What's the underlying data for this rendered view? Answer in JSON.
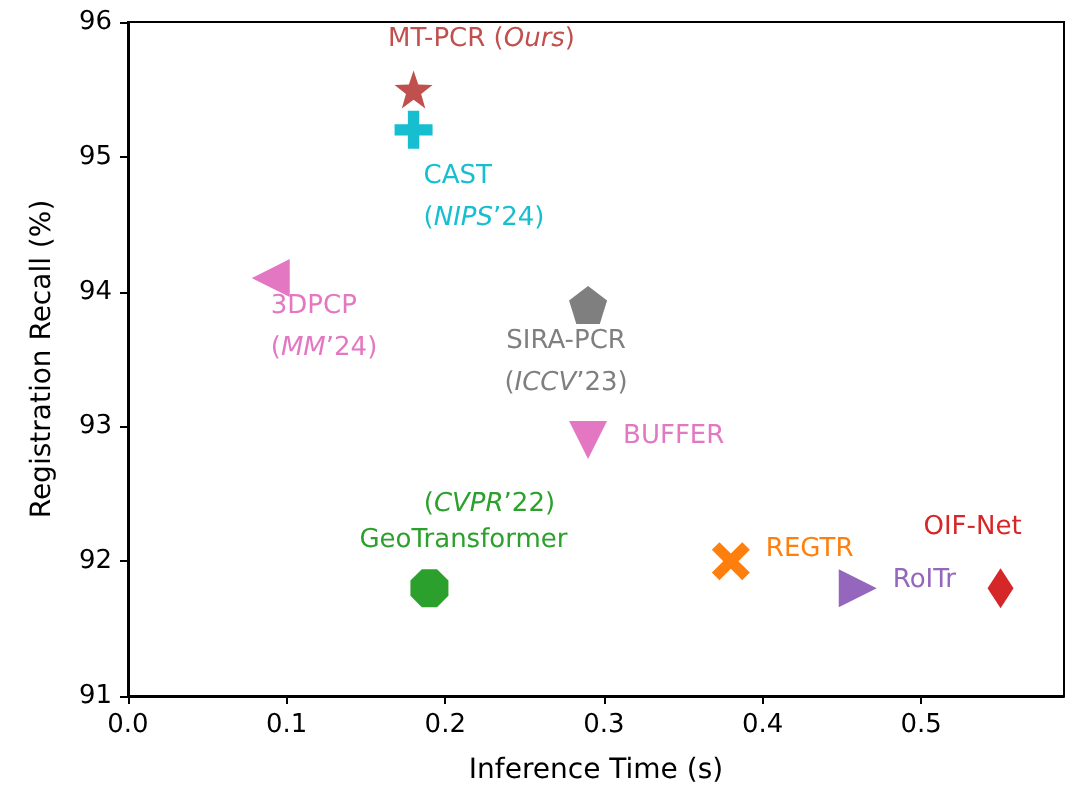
{
  "chart_data": {
    "type": "scatter",
    "xlabel": "Inference Time (s)",
    "ylabel": "Registration Recall (%)",
    "xlim": [
      0,
      0.59
    ],
    "ylim": [
      91,
      96
    ],
    "xticks": [
      {
        "value": 0,
        "label": "0.0"
      },
      0.1,
      0.2,
      0.3,
      0.4,
      0.5
    ],
    "yticks": [
      91,
      92,
      93,
      94,
      95,
      96
    ],
    "grid": false,
    "annotations": [
      {
        "text": "(CVPR’22)",
        "x": 0.19,
        "y": 91.8
      }
    ],
    "series": [
      {
        "name": "MT-PCR (Ours)",
        "color": "#c0504d",
        "marker": "star",
        "x": [
          0.18
        ],
        "values": [
          95.5
        ]
      },
      {
        "name": "CAST (NIPS’24)",
        "color": "#17becf",
        "marker": "plus",
        "x": [
          0.18
        ],
        "values": [
          95.2
        ]
      },
      {
        "name": "3DPCP (MM’24)",
        "color": "#e377c2",
        "marker": "triangle-left",
        "x": [
          0.09
        ],
        "values": [
          94.1
        ]
      },
      {
        "name": "SIRA-PCR (ICCV’23)",
        "color": "#7f7f7f",
        "x": [
          0.29
        ],
        "values": [
          93.9
        ]
      },
      {
        "name": "BUFFER",
        "color": "#e377c2",
        "marker": "triangle-down",
        "x": [
          0.29
        ],
        "values": [
          92.9
        ]
      },
      {
        "name": "GeoTransformer",
        "color": "#2ca02c",
        "x": [
          0.19
        ],
        "values": [
          91.8
        ]
      },
      {
        "name": "REGTR",
        "color": "#ff7f0e",
        "marker": "cross",
        "x": [
          0.38
        ],
        "values": [
          92.0
        ]
      },
      {
        "name": "RoITr",
        "color": "#9467bd",
        "marker": "triangle-right",
        "x": [
          0.46
        ],
        "values": [
          91.8
        ]
      },
      {
        "name": "OIF-Net",
        "color": "#d62728",
        "marker": "diamond",
        "x": [
          0.55
        ],
        "values": [
          91.8
        ]
      }
    ]
  }
}
